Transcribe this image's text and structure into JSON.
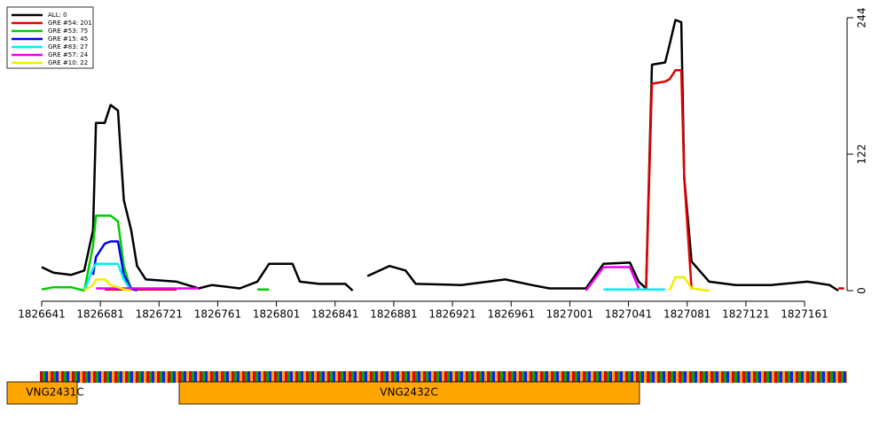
{
  "chart_data": {
    "type": "line",
    "x": [
      1826641,
      1826649,
      1826661,
      1826670,
      1826676,
      1826678,
      1826684,
      1826688,
      1826693,
      1826697,
      1826702,
      1826706,
      1826712,
      1826733,
      1826748,
      1826757,
      1826776,
      1826788,
      1826796,
      1826812,
      1826817,
      1826830,
      1826848,
      1826853,
      1826858,
      1826863,
      1826878,
      1826889,
      1826896,
      1826927,
      1826957,
      1826975,
      1826987,
      1827012,
      1827024,
      1827042,
      1827048,
      1827053,
      1827057,
      1827066,
      1827069,
      1827073,
      1827077,
      1827079,
      1827084,
      1827096,
      1827114,
      1827138,
      1827163,
      1827178,
      1827184,
      1827188
    ],
    "series": [
      {
        "name": "ALL: 0",
        "color": "#000000",
        "values": [
          21,
          16,
          14,
          18,
          54,
          150,
          150,
          166,
          161,
          81,
          54,
          22,
          10,
          8,
          2,
          5,
          2,
          8,
          24,
          24,
          8,
          6,
          6,
          0,
          null,
          13,
          22,
          18,
          6,
          5,
          10,
          5,
          2,
          2,
          24,
          25,
          8,
          2,
          202,
          204,
          220,
          242,
          240,
          101,
          26,
          8,
          5,
          5,
          8,
          5,
          0,
          null
        ]
      },
      {
        "name": "GRE #54: 201",
        "color": "#e00000",
        "values": [
          null,
          null,
          null,
          null,
          null,
          null,
          1,
          1,
          1,
          1,
          1,
          1,
          1,
          1,
          null,
          null,
          null,
          null,
          null,
          null,
          null,
          null,
          null,
          null,
          null,
          null,
          null,
          null,
          null,
          null,
          null,
          null,
          null,
          null,
          null,
          null,
          null,
          2,
          185,
          187,
          189,
          197,
          197,
          101,
          1,
          null,
          null,
          null,
          null,
          null,
          2,
          2
        ]
      },
      {
        "name": "GRE #53: 75",
        "color": "#00cc00",
        "values": [
          1,
          3,
          3,
          0,
          40,
          67,
          67,
          67,
          62,
          22,
          0,
          null,
          null,
          null,
          null,
          null,
          null,
          1,
          1,
          null,
          null,
          null,
          null,
          null,
          null,
          null,
          null,
          null,
          null,
          null,
          null,
          null,
          null,
          null,
          null,
          null,
          null,
          null,
          null,
          null,
          null,
          null,
          null,
          null,
          null,
          null,
          null,
          null,
          null,
          null,
          null,
          null
        ]
      },
      {
        "name": "GRE #15: 45",
        "color": "#0000ee",
        "values": [
          null,
          null,
          null,
          null,
          14,
          30,
          42,
          44,
          44,
          14,
          2,
          0,
          null,
          null,
          null,
          null,
          null,
          null,
          null,
          null,
          null,
          null,
          null,
          null,
          null,
          null,
          null,
          null,
          null,
          null,
          null,
          null,
          null,
          null,
          null,
          null,
          null,
          null,
          null,
          null,
          null,
          null,
          null,
          null,
          null,
          null,
          null,
          null,
          null,
          null,
          null,
          null
        ]
      },
      {
        "name": "GRE #83: 27",
        "color": "#00eeee",
        "values": [
          null,
          null,
          null,
          0,
          20,
          24,
          24,
          24,
          24,
          10,
          0,
          null,
          null,
          null,
          null,
          null,
          null,
          null,
          null,
          null,
          null,
          null,
          null,
          null,
          null,
          null,
          null,
          null,
          null,
          null,
          null,
          null,
          null,
          null,
          1,
          1,
          1,
          1,
          1,
          1,
          null,
          null,
          null,
          null,
          null,
          null,
          null,
          null,
          null,
          null,
          null,
          null
        ]
      },
      {
        "name": "GRE #57: 24",
        "color": "#ee00ee",
        "values": [
          null,
          null,
          null,
          null,
          null,
          2,
          2,
          2,
          2,
          2,
          2,
          2,
          2,
          2,
          2,
          null,
          null,
          null,
          null,
          null,
          null,
          null,
          null,
          null,
          null,
          null,
          null,
          null,
          null,
          null,
          null,
          null,
          null,
          0,
          21,
          21,
          2,
          null,
          null,
          null,
          null,
          null,
          null,
          null,
          null,
          null,
          null,
          null,
          null,
          null,
          null,
          null
        ]
      },
      {
        "name": "GRE #10: 22",
        "color": "#eeee00",
        "values": [
          null,
          null,
          null,
          0,
          5,
          10,
          10,
          5,
          3,
          1,
          0,
          null,
          null,
          null,
          null,
          null,
          null,
          null,
          null,
          null,
          null,
          null,
          null,
          null,
          null,
          null,
          null,
          null,
          null,
          null,
          null,
          null,
          null,
          null,
          null,
          null,
          null,
          null,
          null,
          null,
          0,
          12,
          12,
          12,
          2,
          0,
          null,
          null,
          null,
          null,
          null,
          null
        ]
      }
    ],
    "xlim": [
      1826641,
      1827190
    ],
    "xticks": [
      1826641,
      1826681,
      1826721,
      1826761,
      1826801,
      1826841,
      1826881,
      1826921,
      1826961,
      1827001,
      1827041,
      1827081,
      1827121,
      1827161
    ],
    "ylim": [
      0,
      244
    ],
    "yticks": [
      0,
      122,
      244
    ],
    "legend": "top-left",
    "genes": [
      "VNG2431C",
      "VNG2432C"
    ]
  }
}
